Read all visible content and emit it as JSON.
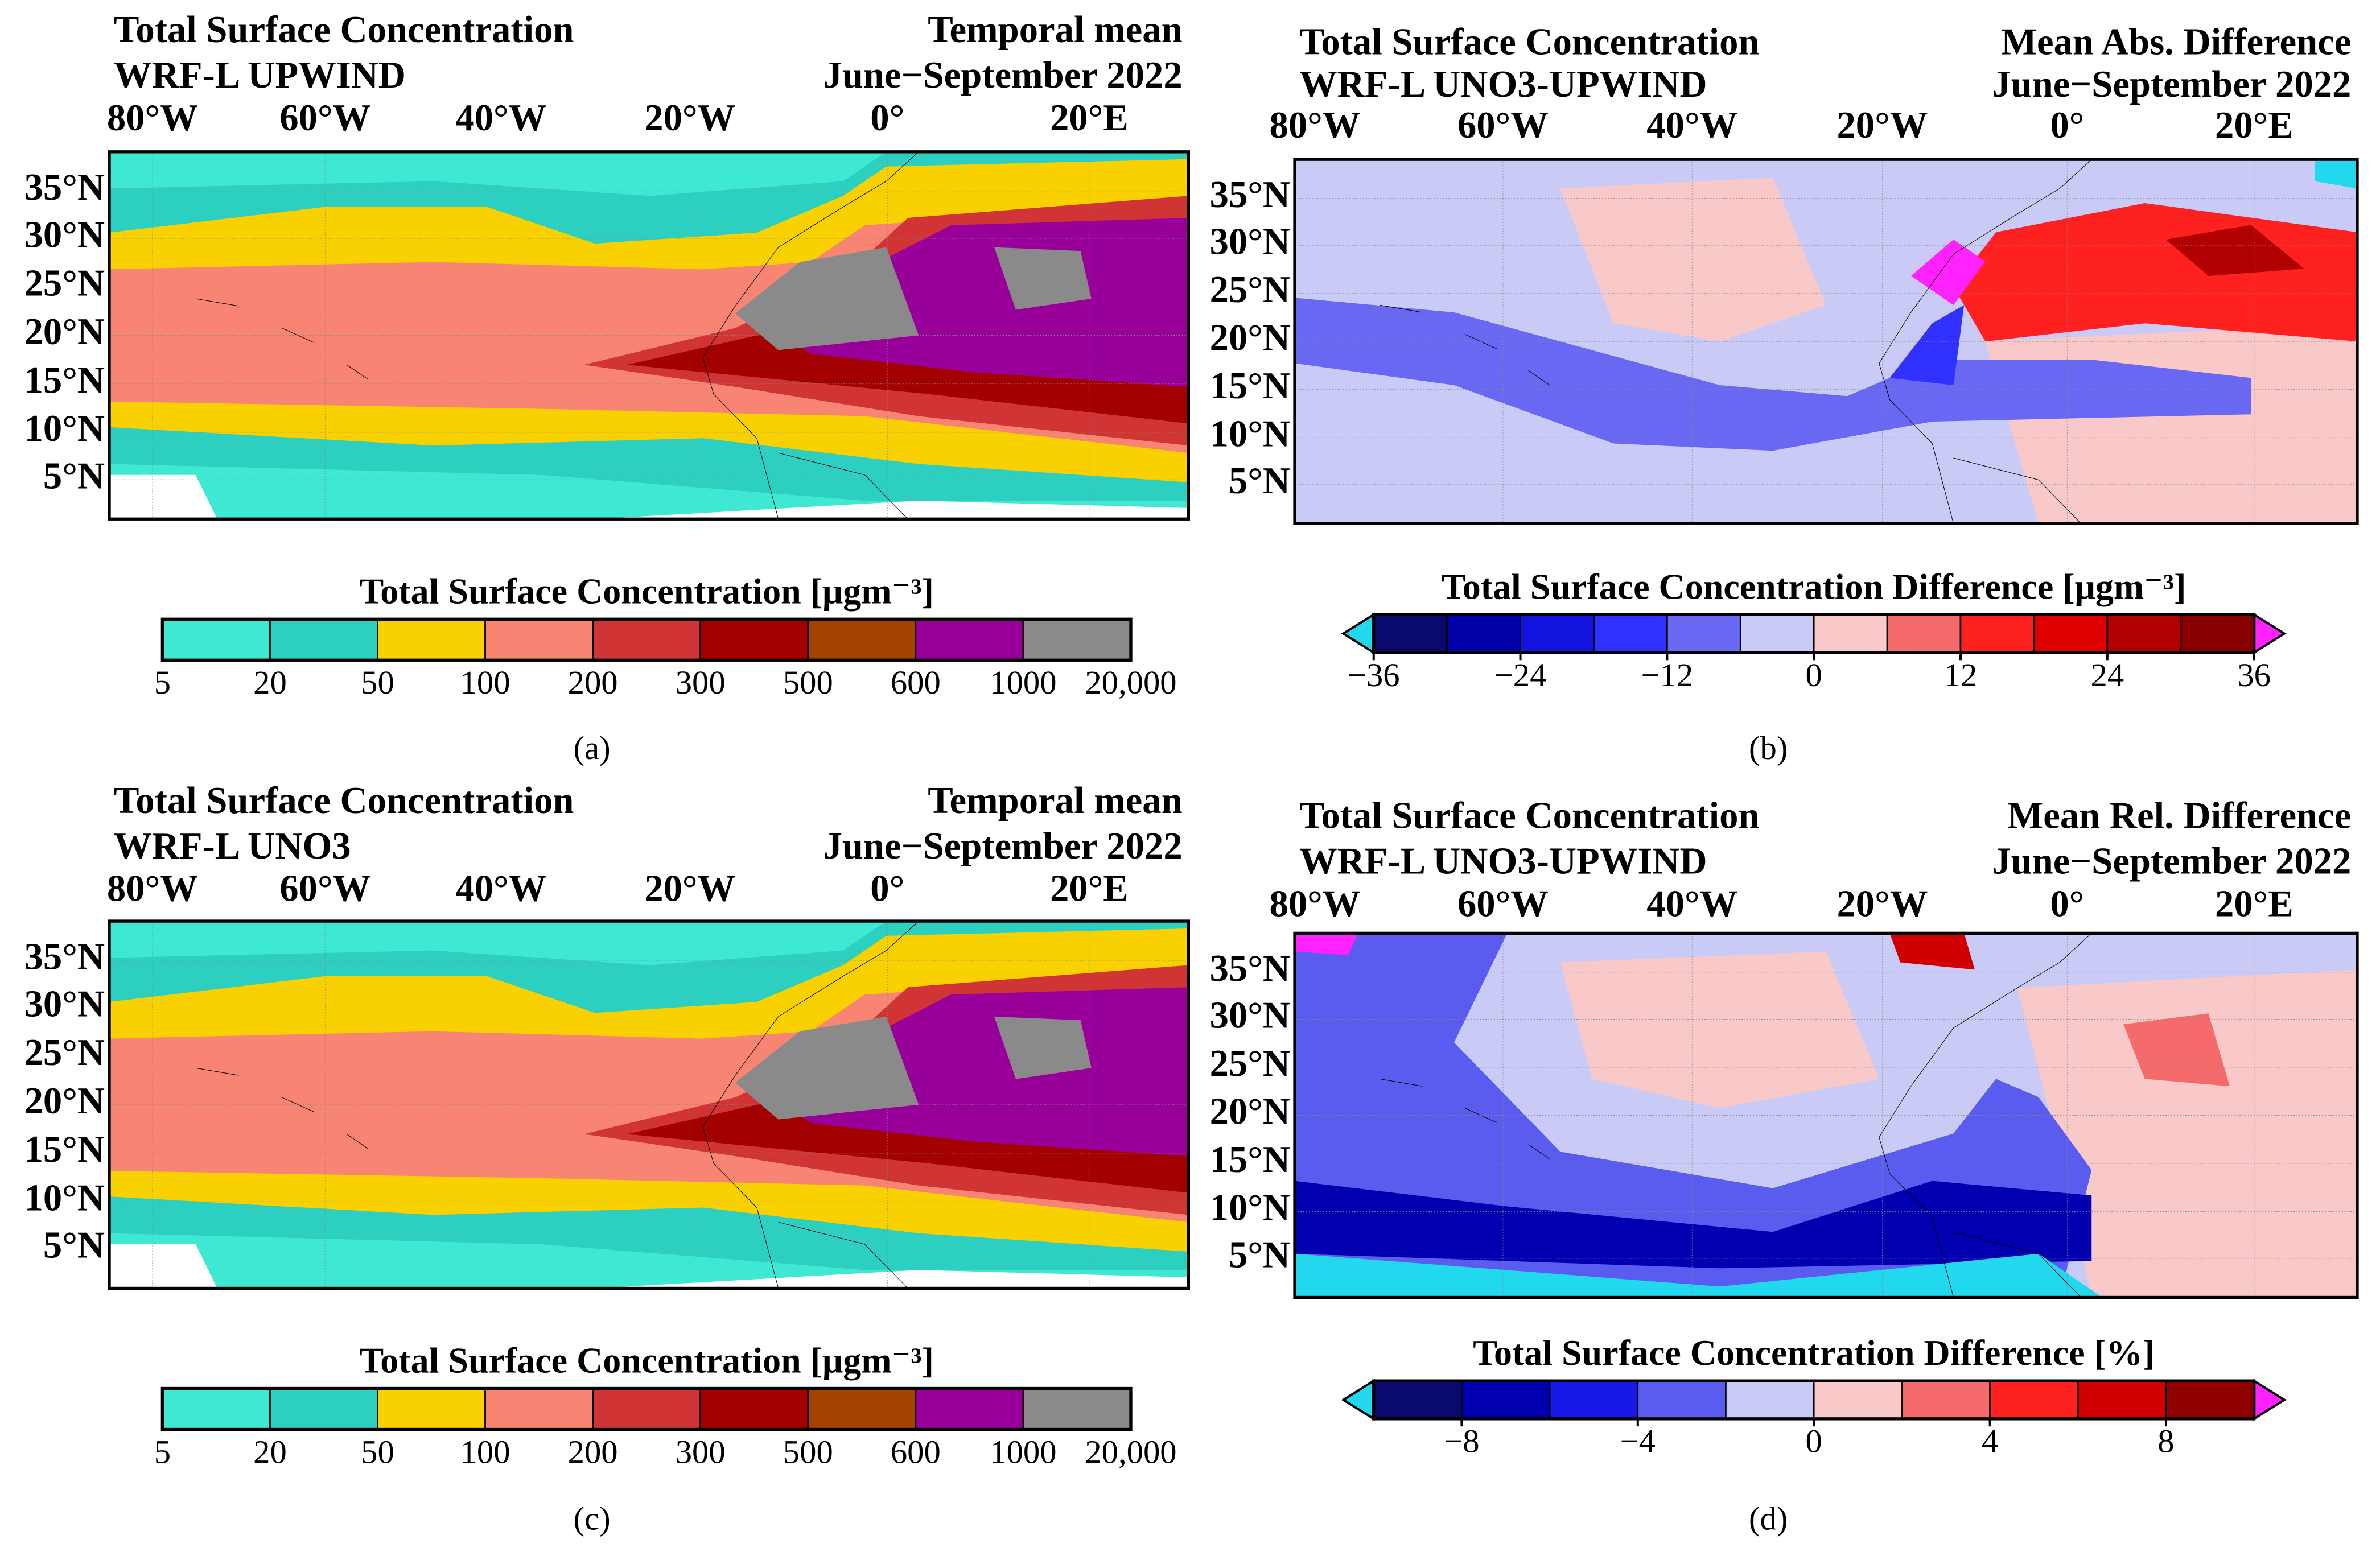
{
  "panels": [
    {
      "label": "(a)",
      "title_left": [
        "Total Surface Concentration",
        "WRF-L UPWIND"
      ],
      "title_right": [
        "Temporal mean",
        "June−September 2022"
      ],
      "lon_labels": [
        "80°W",
        "60°W",
        "40°W",
        "20°W",
        "0°",
        "20°E"
      ],
      "lat_labels": [
        "35°N",
        "30°N",
        "25°N",
        "20°N",
        "15°N",
        "10°N",
        "5°N"
      ],
      "colorbar": {
        "title": "Total Surface Concentration [μgm⁻³]",
        "colors": [
          "#3fe8d2",
          "#2ccfc0",
          "#f9d000",
          "#f88474",
          "#d03434",
          "#a30000",
          "#a44200",
          "#990099",
          "#8a8a8a"
        ],
        "ticks": [
          "5",
          "20",
          "50",
          "100",
          "200",
          "300",
          "500",
          "600",
          "1000",
          "20,000"
        ]
      }
    },
    {
      "label": "(b)",
      "title_left": [
        "Total Surface Concentration",
        "WRF-L UNO3-UPWIND"
      ],
      "title_right": [
        "Mean Abs. Difference",
        "June−September 2022"
      ],
      "lon_labels": [
        "80°W",
        "60°W",
        "40°W",
        "20°W",
        "0°",
        "20°E"
      ],
      "lat_labels": [
        "35°N",
        "30°N",
        "25°N",
        "20°N",
        "15°N",
        "10°N",
        "5°N"
      ],
      "colorbar": {
        "title": "Total Surface Concentration Difference [μgm⁻³]",
        "colors": [
          "#0a0a6e",
          "#0000a8",
          "#1414e0",
          "#3030ff",
          "#6868f2",
          "#c9cbf6",
          "#f9c8c8",
          "#f56a6a",
          "#ff2020",
          "#e00000",
          "#b00000",
          "#880000"
        ],
        "extend_colors": [
          "#22d8ee",
          "#ff22ff"
        ],
        "range": [
          -36,
          36
        ],
        "ticks": [
          {
            "value": -36,
            "label": "−36"
          },
          {
            "value": -24,
            "label": "−24"
          },
          {
            "value": -12,
            "label": "−12"
          },
          0,
          12,
          24,
          36
        ]
      }
    },
    {
      "label": "(c)",
      "title_left": [
        "Total Surface Concentration",
        "WRF-L UNO3"
      ],
      "title_right": [
        "Temporal mean",
        "June−September 2022"
      ],
      "lon_labels": [
        "80°W",
        "60°W",
        "40°W",
        "20°W",
        "0°",
        "20°E"
      ],
      "lat_labels": [
        "35°N",
        "30°N",
        "25°N",
        "20°N",
        "15°N",
        "10°N",
        "5°N"
      ],
      "colorbar": {
        "title": "Total Surface Concentration [μgm⁻³]",
        "colors": [
          "#3fe8d2",
          "#2ccfc0",
          "#f9d000",
          "#f88474",
          "#d03434",
          "#a30000",
          "#a44200",
          "#990099",
          "#8a8a8a"
        ],
        "ticks": [
          "5",
          "20",
          "50",
          "100",
          "200",
          "300",
          "500",
          "600",
          "1000",
          "20,000"
        ]
      }
    },
    {
      "label": "(d)",
      "title_left": [
        "Total Surface Concentration",
        "WRF-L UNO3-UPWIND"
      ],
      "title_right": [
        "Mean Rel. Difference",
        "June−September 2022"
      ],
      "lon_labels": [
        "80°W",
        "60°W",
        "40°W",
        "20°W",
        "0°",
        "20°E"
      ],
      "lat_labels": [
        "35°N",
        "30°N",
        "25°N",
        "20°N",
        "15°N",
        "10°N",
        "5°N"
      ],
      "colorbar": {
        "title": "Total Surface Concentration Difference [%]",
        "colors": [
          "#0a0a6e",
          "#0000b0",
          "#1818e8",
          "#5a5cf0",
          "#c9cbf6",
          "#f9c8c8",
          "#f56a6a",
          "#ff2020",
          "#d00000",
          "#900000"
        ],
        "extend_colors": [
          "#22d8ee",
          "#ff22ff"
        ],
        "range": [
          -10,
          10
        ],
        "ticks": [
          {
            "value": -8,
            "label": "−8"
          },
          {
            "value": -4,
            "label": "−4"
          },
          0,
          4,
          8
        ]
      }
    }
  ]
}
